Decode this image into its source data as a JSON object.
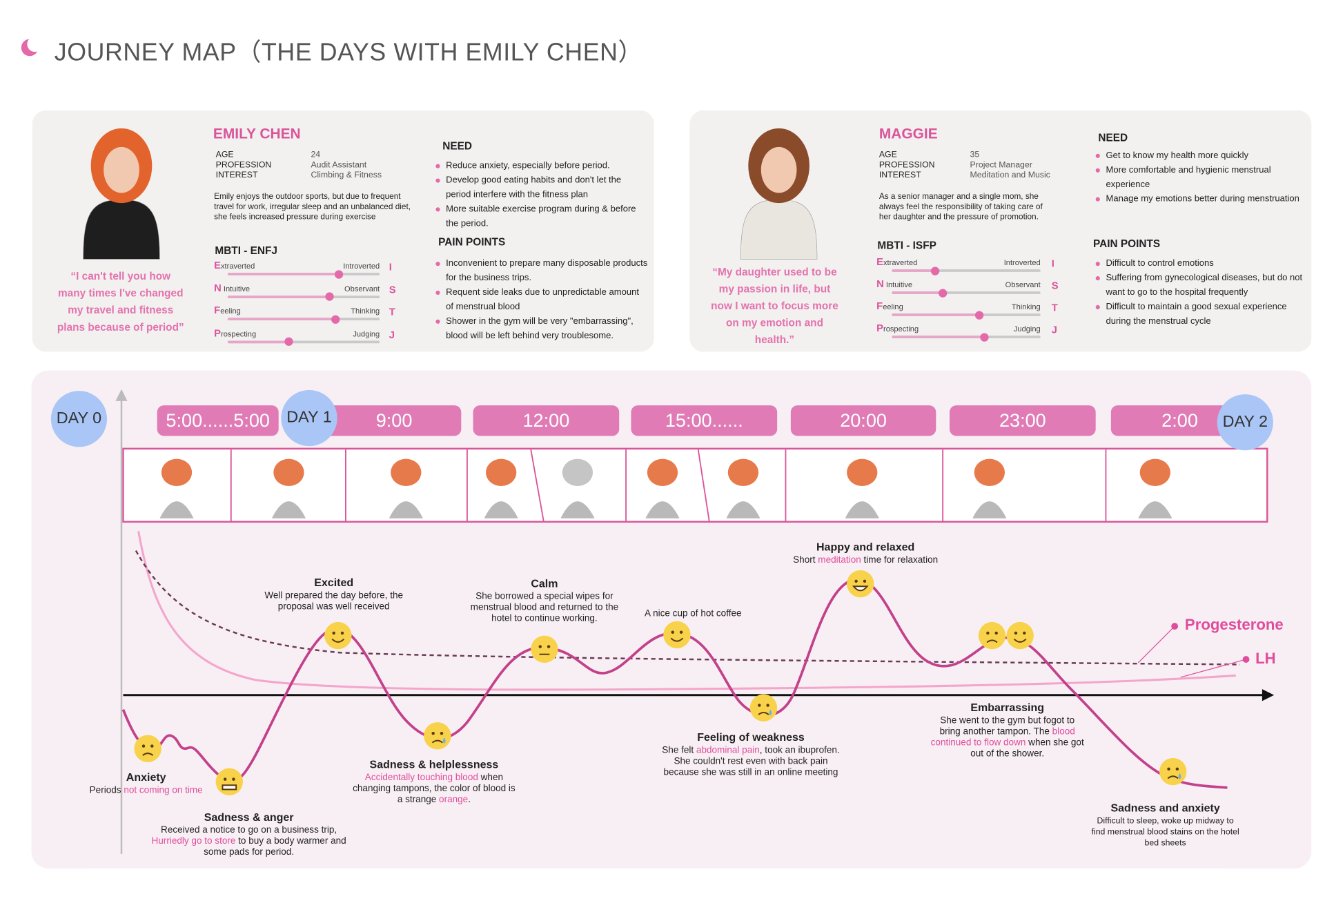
{
  "header": {
    "title": "JOURNEY MAP（THE DAYS WITH EMILY CHEN）"
  },
  "personas": [
    {
      "name": "EMILY CHEN",
      "fields": [
        {
          "label": "AGE",
          "value": "24"
        },
        {
          "label": "PROFESSION",
          "value": "Audit Assistant"
        },
        {
          "label": "INTEREST",
          "value": "Climbing & Fitness"
        }
      ],
      "bio": "Emily enjoys the outdoor sports, but due to frequent travel for work, irregular sleep and an unbalanced diet, she feels increased pressure during exercise",
      "quote": "“I can't tell you how many times I've changed my travel and fitness plans because of period”",
      "mbti_title": "MBTI - ENFJ",
      "mbti": [
        {
          "left": "Extraverted",
          "right": "Introverted",
          "letter": "I",
          "position": 73
        },
        {
          "left": "N Intuitive",
          "right": "Observant",
          "letter": "S",
          "position": 67
        },
        {
          "left": "Feeling",
          "right": "Thinking",
          "letter": "T",
          "position": 71
        },
        {
          "left": "Prospecting",
          "right": "Judging",
          "letter": "J",
          "position": 40
        }
      ],
      "need_title": "NEED",
      "need": [
        "Reduce anxiety, especially before period.",
        "Develop good eating habits and don't let the period interfere with the fitness plan",
        "More suitable exercise program during & before the period."
      ],
      "pain_title": "PAIN POINTS",
      "pain_points": [
        "Inconvenient to prepare many disposable products for the business trips.",
        "Requent side leaks due to unpredictable amount of menstrual blood",
        "Shower in the gym will be very \"embarrassing\", blood will be left behind very troublesome."
      ]
    },
    {
      "name": "MAGGIE",
      "fields": [
        {
          "label": "AGE",
          "value": "35"
        },
        {
          "label": "PROFESSION",
          "value": "Project Manager"
        },
        {
          "label": "INTEREST",
          "value": "Meditation and Music"
        }
      ],
      "bio": "As a senior manager and a single mom, she always feel the responsibility of taking care of her daughter and the pressure of promotion.",
      "quote": "“My daughter used to be my passion in life, but now I want to focus more on my emotion and health.”",
      "mbti_title": "MBTI - ISFP",
      "mbti": [
        {
          "left": "Extraverted",
          "right": "Introverted",
          "letter": "I",
          "position": 29
        },
        {
          "left": "N Intuitive",
          "right": "Observant",
          "letter": "S",
          "position": 34
        },
        {
          "left": "Feeling",
          "right": "Thinking",
          "letter": "T",
          "position": 59
        },
        {
          "left": "Prospecting",
          "right": "Judging",
          "letter": "J",
          "position": 62
        }
      ],
      "need_title": "NEED",
      "need": [
        "Get to know my health more quickly",
        "More comfortable and hygienic menstrual experience",
        "Manage my emotions better during menstruation"
      ],
      "pain_title": "PAIN POINTS",
      "pain_points": [
        "Difficult to control emotions",
        "Suffering from gynecological diseases, but do not want to go to the hospital frequently",
        "Difficult to maintain a good sexual experience during the menstrual cycle"
      ]
    }
  ],
  "journey": {
    "days": [
      "DAY 0",
      "DAY 1",
      "DAY 2"
    ],
    "times": [
      "5:00......5:00",
      "9:00",
      "12:00",
      "15:00......",
      "20:00",
      "23:00",
      "2:00"
    ],
    "hormones": [
      "Progesterone",
      "LH"
    ],
    "stages": [
      {
        "title": "Anxiety",
        "desc": [
          {
            "text": "Periods "
          },
          {
            "text": "not coming on time",
            "pink": true
          }
        ]
      },
      {
        "title": "Sadness & anger",
        "desc": [
          {
            "text": "Received a notice to go on a business trip, "
          },
          {
            "text": "Hurriedly go to store",
            "pink": true
          },
          {
            "text": " to buy a body warmer and some pads for period."
          }
        ]
      },
      {
        "title": "Excited",
        "desc": [
          {
            "text": "Well prepared the day before, the proposal was well received"
          }
        ]
      },
      {
        "title": "Sadness & helplessness",
        "desc": [
          {
            "text": "Accidentally touching blood",
            "pink": true
          },
          {
            "text": " when changing tampons, the color of blood is a strange "
          },
          {
            "text": "orange",
            "pink": true
          },
          {
            "text": "."
          }
        ]
      },
      {
        "title": "Calm",
        "desc": [
          {
            "text": "She borrowed a special wipes for menstrual blood and returned to the hotel to continue working."
          }
        ]
      },
      {
        "desc": [
          {
            "text": "A nice cup of hot coffee"
          }
        ]
      },
      {
        "title": "Feeling of weakness",
        "desc": [
          {
            "text": "She felt "
          },
          {
            "text": "abdominal pain",
            "pink": true
          },
          {
            "text": ", took an ibuprofen. She couldn't rest even with back pain because she was still in an online meeting"
          }
        ]
      },
      {
        "title": "Happy and relaxed",
        "desc": [
          {
            "text": "Short "
          },
          {
            "text": "meditation",
            "pink": true
          },
          {
            "text": " time for relaxation"
          }
        ]
      },
      {
        "title": "Embarrassing",
        "desc": [
          {
            "text": "She went to the gym but fogot to bring another tampon. The "
          },
          {
            "text": "blood continued to flow down",
            "pink": true
          },
          {
            "text": " when she got out of the shower."
          }
        ]
      },
      {
        "title": "Sadness and anxiety",
        "desc": [
          {
            "text": "Difficult to sleep, woke up midway to find menstrual blood stains on the hotel bed sheets"
          }
        ]
      }
    ]
  }
}
